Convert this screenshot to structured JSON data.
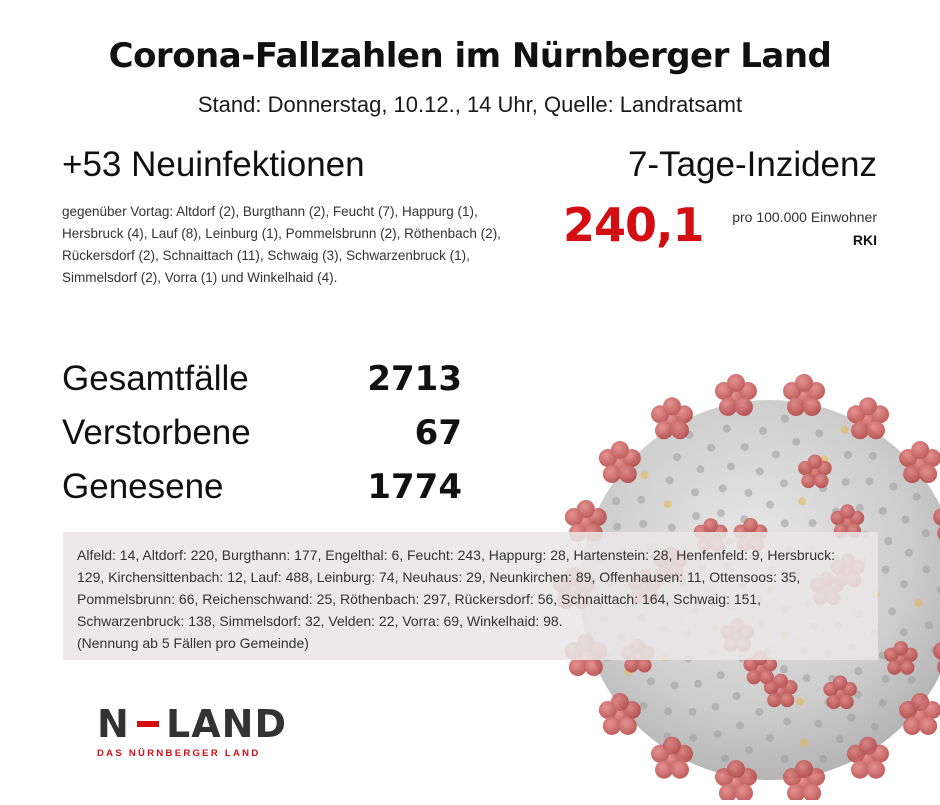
{
  "header": {
    "title": "Corona-Fallzahlen im Nürnberger Land",
    "subtitle": "Stand: Donnerstag, 10.12., 14 Uhr, Quelle: Landratsamt"
  },
  "new_infections": {
    "heading": "+53 Neuinfektionen",
    "detail": "gegenüber Vortag: Altdorf (2), Burgthann (2), Feucht (7), Happurg (1), Hersbruck (4), Lauf (8), Leinburg (1), Pommelsbrunn (2), Röthenbach (2), Rückersdorf (2), Schnaittach (11), Schwaig (3), Schwarzenbruck (1), Simmelsdorf (2), Vorra (1) und Winkelhaid (4)."
  },
  "incidence": {
    "heading": "7-Tage-Inzidenz",
    "value": "240,1",
    "unit": "pro 100.000 Einwohner",
    "source": "RKI",
    "value_color": "#d40d12"
  },
  "stats": [
    {
      "label": "Gesamtfälle",
      "value": "2713"
    },
    {
      "label": "Verstorbene",
      "value": "67"
    },
    {
      "label": "Genesene",
      "value": "1774"
    }
  ],
  "breakdown": {
    "text": "Alfeld: 14, Altdorf: 220, Burgthann: 177, Engelthal: 6, Feucht: 243, Happurg: 28, Hartenstein: 28, Henfenfeld: 9, Hersbruck: 129, Kirchensittenbach: 12, Lauf: 488, Leinburg: 74, Neuhaus: 29, Neunkirchen: 89, Offenhausen: 11, Ottensoos: 35, Pommelsbrunn: 66, Reichenschwand: 25, Röthenbach: 297, Rückersdorf: 56, Schnaittach: 164, Schwaig: 151, Schwarzenbruck: 138, Simmelsdorf: 32, Velden: 22, Vorra: 69, Winkelhaid: 98.",
    "note": "(Nennung ab 5 Fällen pro Gemeinde)"
  },
  "logo": {
    "left": "N",
    "right": "LAND",
    "tagline": "DAS NÜRNBERGER LAND",
    "accent_color": "#d40d12"
  },
  "decor": {
    "background_image": "coronavirus-illustration"
  }
}
